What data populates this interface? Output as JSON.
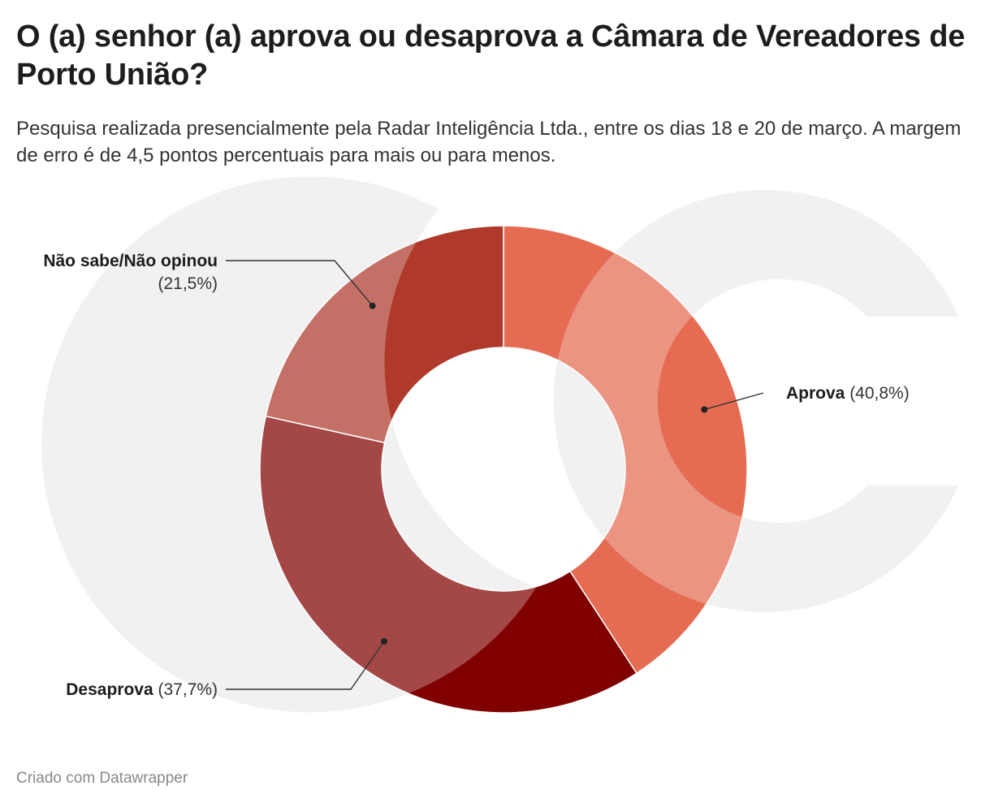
{
  "title": "O (a) senhor (a) aprova ou desaprova a Câmara de Vereadores de Porto União?",
  "subtitle": "Pesquisa realizada presencialmente pela Radar Inteligência Ltda., entre os dias 18 e 20 de março. A margem de erro é de 4,5 pontos percentuais para mais ou para menos.",
  "footer": "Criado com Datawrapper",
  "chart_data": {
    "type": "pie",
    "variant": "donut",
    "categories": [
      "Aprova",
      "Desaprova",
      "Não sabe/Não opinou"
    ],
    "values": [
      40.8,
      37.7,
      21.5
    ],
    "value_labels": [
      "(40,8%)",
      "(37,7%)",
      "(21,5%)"
    ],
    "colors": [
      "#e56b52",
      "#800000",
      "#af3a2b"
    ],
    "start": "top, clockwise"
  },
  "watermark": {
    "name": "joc-logo-watermark",
    "letter": "J",
    "color": "#ebebeb"
  }
}
